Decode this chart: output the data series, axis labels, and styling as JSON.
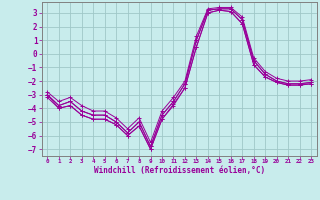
{
  "xlabel": "Windchill (Refroidissement éolien,°C)",
  "bg_color": "#c8ecec",
  "grid_color": "#a0c8c8",
  "line_color": "#990099",
  "xlim": [
    -0.5,
    23.5
  ],
  "ylim": [
    -7.5,
    3.8
  ],
  "yticks": [
    3,
    2,
    1,
    0,
    -1,
    -2,
    -3,
    -4,
    -5,
    -6,
    -7
  ],
  "xticks": [
    0,
    1,
    2,
    3,
    4,
    5,
    6,
    7,
    8,
    9,
    10,
    11,
    12,
    13,
    14,
    15,
    16,
    17,
    18,
    19,
    20,
    21,
    22,
    23
  ],
  "curves": [
    [
      -3.0,
      -3.8,
      -3.5,
      -4.2,
      -4.5,
      -4.5,
      -5.0,
      -5.8,
      -5.0,
      -6.8,
      -4.5,
      -3.5,
      -2.2,
      1.0,
      3.2,
      3.3,
      3.3,
      2.5,
      -0.5,
      -1.5,
      -2.0,
      -2.2,
      -2.2,
      -2.1
    ],
    [
      -3.0,
      -3.8,
      -3.5,
      -4.2,
      -4.5,
      -4.5,
      -5.0,
      -5.8,
      -5.0,
      -6.8,
      -4.5,
      -3.5,
      -2.2,
      1.0,
      3.2,
      3.3,
      3.3,
      2.5,
      -0.5,
      -1.5,
      -2.0,
      -2.2,
      -2.2,
      -2.1
    ],
    [
      -3.2,
      -4.0,
      -3.8,
      -4.5,
      -4.8,
      -4.8,
      -5.2,
      -6.0,
      -5.3,
      -7.0,
      -4.8,
      -3.7,
      -2.5,
      0.5,
      3.0,
      3.2,
      3.1,
      2.2,
      -0.8,
      -1.7,
      -2.1,
      -2.3,
      -2.3,
      -2.2
    ],
    [
      -2.8,
      -3.5,
      -3.2,
      -3.8,
      -4.2,
      -4.2,
      -4.7,
      -5.5,
      -4.7,
      -6.5,
      -4.2,
      -3.2,
      -2.0,
      1.3,
      3.3,
      3.4,
      3.4,
      2.7,
      -0.3,
      -1.3,
      -1.8,
      -2.0,
      -2.0,
      -1.9
    ],
    [
      -3.0,
      -4.0,
      -3.8,
      -4.5,
      -4.8,
      -4.8,
      -5.2,
      -6.0,
      -5.3,
      -7.0,
      -4.8,
      -3.8,
      -2.5,
      0.5,
      3.0,
      3.2,
      3.1,
      2.2,
      -0.8,
      -1.7,
      -2.1,
      -2.3,
      -2.3,
      -2.2
    ]
  ]
}
